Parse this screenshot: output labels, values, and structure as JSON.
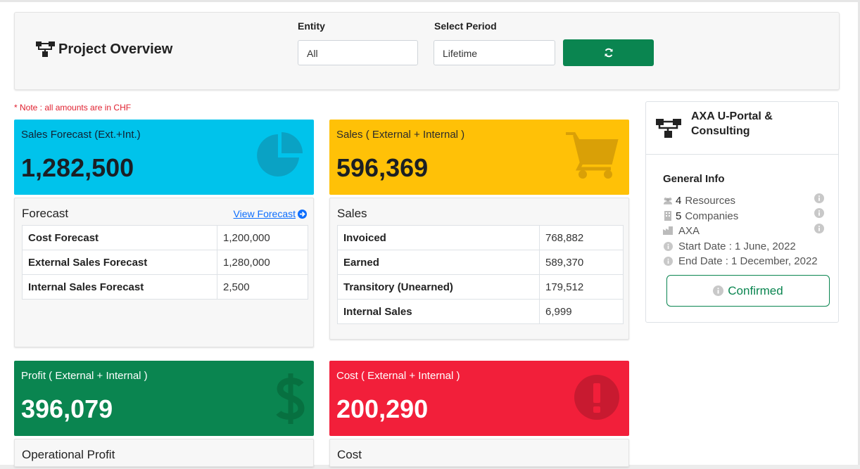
{
  "header": {
    "title": "Project Overview",
    "entity_label": "Entity",
    "entity_value": "All",
    "period_label": "Select Period",
    "period_value": "Lifetime"
  },
  "note": "* Note : all amounts are in CHF",
  "tiles": {
    "sales_forecast": {
      "label": "Sales Forecast (Ext.+Int.)",
      "value": "1,282,500",
      "color": "#00c3eb"
    },
    "sales": {
      "label": "Sales ( External + Internal )",
      "value": "596,369",
      "color": "#ffc107"
    },
    "profit": {
      "label": "Profit ( External + Internal )",
      "value": "396,079",
      "color": "#0a8550"
    },
    "cost": {
      "label": "Cost ( External + Internal )",
      "value": "200,290",
      "color": "#f21f3a"
    }
  },
  "forecast_panel": {
    "title": "Forecast",
    "link": "View Forecast",
    "rows": [
      {
        "key": "Cost Forecast",
        "value": "1,200,000"
      },
      {
        "key": "External Sales Forecast",
        "value": "1,280,000"
      },
      {
        "key": "Internal Sales Forecast",
        "value": "2,500"
      }
    ]
  },
  "sales_panel": {
    "title": "Sales",
    "rows": [
      {
        "key": "Invoiced",
        "value": "768,882"
      },
      {
        "key": "Earned",
        "value": "589,370"
      },
      {
        "key": "Transitory (Unearned)",
        "value": "179,512"
      },
      {
        "key": "Internal Sales",
        "value": "6,999"
      }
    ]
  },
  "profit_panel": {
    "title": "Operational Profit"
  },
  "cost_panel": {
    "title": "Cost"
  },
  "project_card": {
    "title": "AXA U-Portal & Consulting",
    "general_info": "General Info",
    "resources_count": "4",
    "resources_label": "Resources",
    "companies_count": "5",
    "companies_label": "Companies",
    "client": "AXA",
    "start_date": "Start Date : 1 June, 2022",
    "end_date": "End Date : 1 December, 2022",
    "status": "Confirmed"
  },
  "colors": {
    "accent_green": "#0a8550",
    "note_red": "#e0202f"
  },
  "icons": [
    "sitemap-icon",
    "refresh-icon",
    "pie-chart-icon",
    "cart-icon",
    "dollar-icon",
    "exclamation-icon",
    "arrow-circle-right-icon",
    "users-icon",
    "building-icon",
    "industry-icon",
    "info-icon"
  ]
}
